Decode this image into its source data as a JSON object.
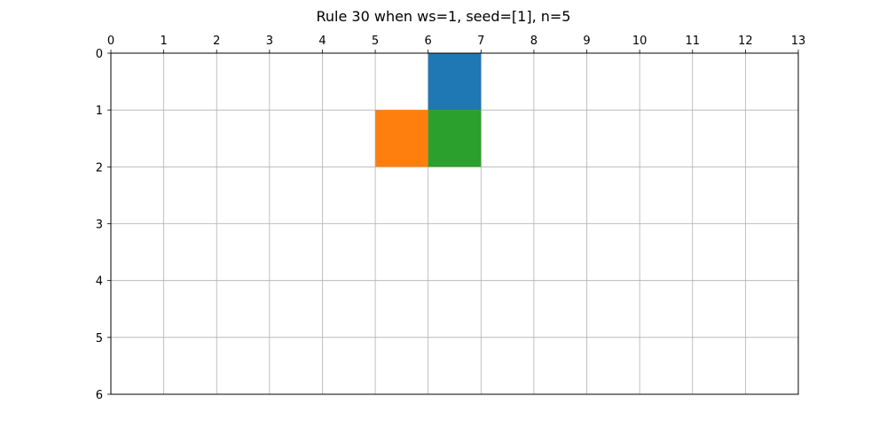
{
  "chart_data": {
    "type": "heatmap",
    "title": "Rule 30 when ws=1, seed=[1], n=5",
    "xlim": [
      0,
      13
    ],
    "ylim": [
      0,
      6
    ],
    "x_ticks": [
      "0",
      "1",
      "2",
      "3",
      "4",
      "5",
      "6",
      "7",
      "8",
      "9",
      "10",
      "11",
      "12",
      "13"
    ],
    "y_ticks": [
      "0",
      "1",
      "2",
      "3",
      "4",
      "5",
      "6"
    ],
    "x_axis_position": "top",
    "y_axis_inverted": true,
    "grid": true,
    "cells": [
      {
        "col": 6,
        "row": 0,
        "color": "#1f77b4"
      },
      {
        "col": 5,
        "row": 1,
        "color": "#ff7f0e"
      },
      {
        "col": 6,
        "row": 1,
        "color": "#2ca02c"
      }
    ]
  }
}
